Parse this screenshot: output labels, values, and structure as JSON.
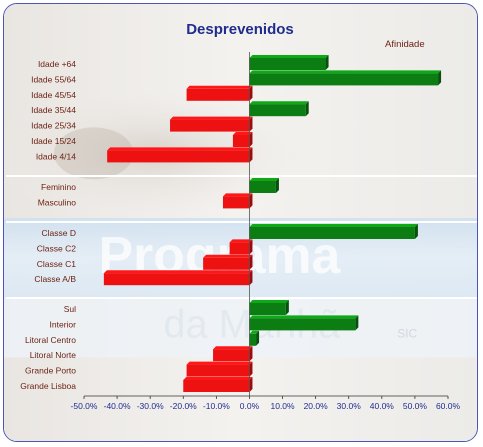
{
  "chart_data": {
    "type": "bar",
    "orientation": "horizontal",
    "title": "Desprevenidos",
    "legend": "Afinidade",
    "xlim": [
      -50,
      60
    ],
    "xticks": [
      "-50.0%",
      "-40.0%",
      "-30.0%",
      "-20.0%",
      "-10.0%",
      "0.0%",
      "10.0%",
      "20.0%",
      "30.0%",
      "40.0%",
      "50.0%",
      "60.0%"
    ],
    "positive_color": "#0b7d12",
    "negative_color": "#ee1111",
    "groups": [
      {
        "categories": [
          "Idade +64",
          "Idade 55/64",
          "Idade 45/54",
          "Idade 35/44",
          "Idade 25/34",
          "Idade 15/24",
          "Idade 4/14"
        ],
        "values": [
          23,
          57,
          -19,
          17,
          -24,
          -5,
          -43
        ]
      },
      {
        "categories": [
          "Feminino",
          "Masculino"
        ],
        "values": [
          8,
          -8
        ]
      },
      {
        "categories": [
          "Classe D",
          "Classe C2",
          "Classe C1",
          "Classe A/B"
        ],
        "values": [
          50,
          -6,
          -14,
          -44
        ]
      },
      {
        "categories": [
          "Sul",
          "Interior",
          "Litoral Centro",
          "Litoral Norte",
          "Grande Porto",
          "Grande Lisboa"
        ],
        "values": [
          11,
          32,
          2,
          -11,
          -19,
          -20
        ]
      }
    ]
  }
}
